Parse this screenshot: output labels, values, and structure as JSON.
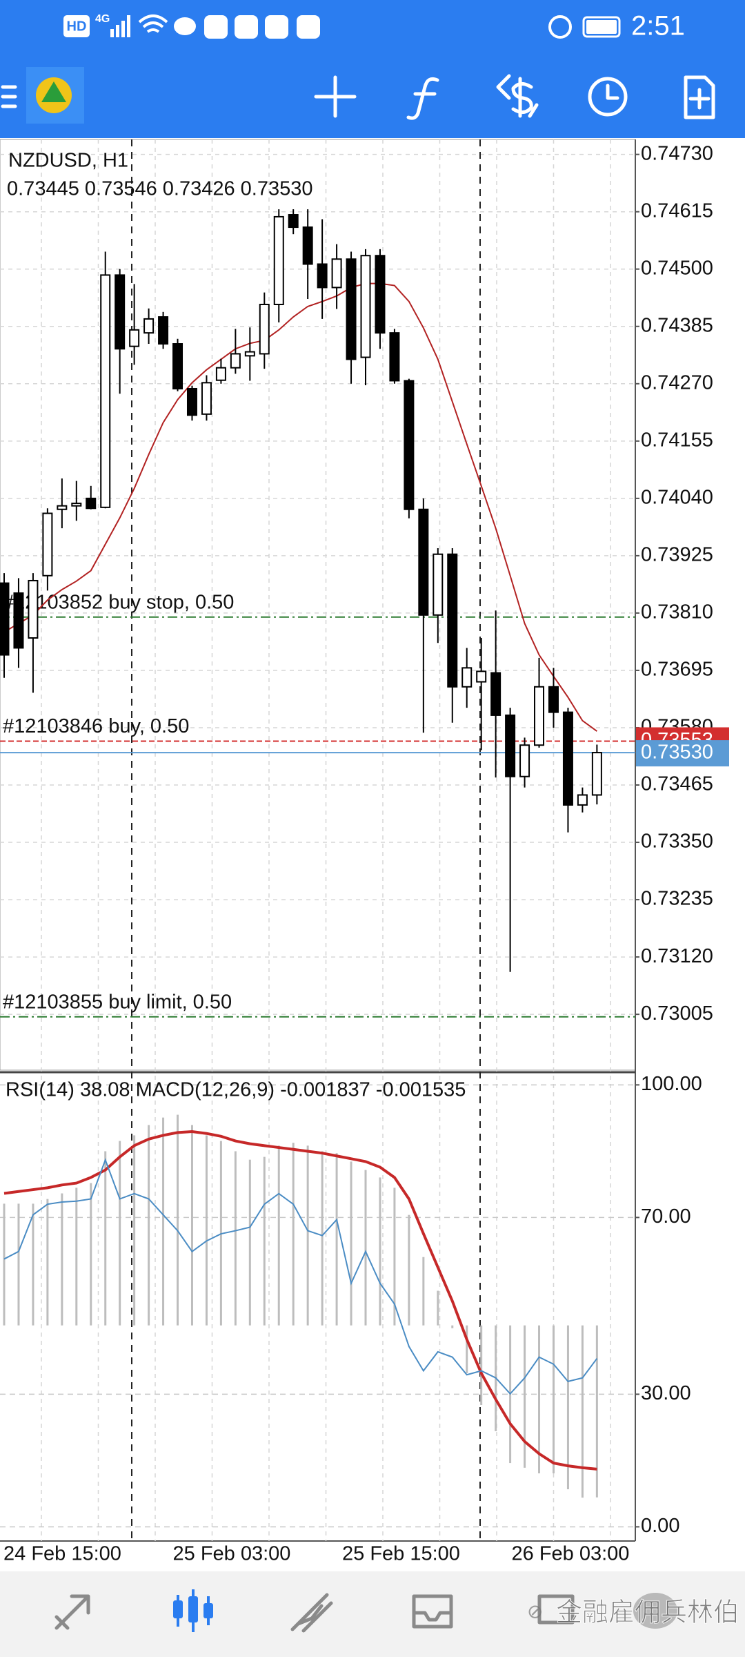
{
  "status_bar": {
    "hd": "HD",
    "network": "4G",
    "time": "2:51"
  },
  "chart_data": [
    {
      "type": "candlestick",
      "title": "NZDUSD, H1",
      "subtitle": "0.73445 0.73546 0.73426 0.73530",
      "open": [
        0.7387,
        0.7385,
        0.7376,
        0.73885,
        0.74018,
        0.74025,
        0.7404,
        0.74022,
        0.74488,
        0.74345,
        0.74372,
        0.74404,
        0.7435,
        0.7426,
        0.74209,
        0.74277,
        0.74302,
        0.74326,
        0.7433,
        0.74429,
        0.74609,
        0.74584,
        0.7451,
        0.74463,
        0.7452,
        0.74323,
        0.74527,
        0.74372,
        0.74276,
        0.74018,
        0.73806,
        0.73928,
        0.73662,
        0.73672,
        0.7369,
        0.73605,
        0.73482,
        0.73545,
        0.73662,
        0.73611,
        0.73425,
        0.73445
      ],
      "high": [
        0.7389,
        0.7388,
        0.7389,
        0.7402,
        0.7408,
        0.74075,
        0.74065,
        0.74535,
        0.745,
        0.7447,
        0.74421,
        0.74414,
        0.7436,
        0.74266,
        0.74287,
        0.7432,
        0.7438,
        0.74383,
        0.74453,
        0.7462,
        0.7462,
        0.7462,
        0.746,
        0.7455,
        0.74535,
        0.7454,
        0.7454,
        0.7438,
        0.7428,
        0.7404,
        0.7394,
        0.7394,
        0.7374,
        0.7376,
        0.73815,
        0.7362,
        0.7356,
        0.7372,
        0.737,
        0.7362,
        0.7346,
        0.73546
      ],
      "low": [
        0.7368,
        0.737,
        0.7365,
        0.73855,
        0.7398,
        0.73995,
        0.74018,
        0.7402,
        0.7425,
        0.74308,
        0.7435,
        0.7434,
        0.74255,
        0.74196,
        0.74196,
        0.7427,
        0.7429,
        0.74276,
        0.743,
        0.74393,
        0.7457,
        0.7444,
        0.744,
        0.7442,
        0.7427,
        0.74267,
        0.7434,
        0.7427,
        0.74,
        0.7357,
        0.7375,
        0.7359,
        0.7362,
        0.73535,
        0.7348,
        0.7309,
        0.7346,
        0.7354,
        0.7358,
        0.7337,
        0.7341,
        0.73426
      ],
      "close": [
        0.73726,
        0.7374,
        0.73875,
        0.7401,
        0.74025,
        0.7403,
        0.7402,
        0.74488,
        0.7434,
        0.74378,
        0.744,
        0.7435,
        0.7426,
        0.74207,
        0.74272,
        0.74302,
        0.7433,
        0.74334,
        0.74429,
        0.74605,
        0.74584,
        0.7451,
        0.74463,
        0.7452,
        0.74319,
        0.74527,
        0.74372,
        0.74276,
        0.74018,
        0.73806,
        0.73928,
        0.73662,
        0.737,
        0.73693,
        0.73605,
        0.73482,
        0.73545,
        0.73662,
        0.73611,
        0.73425,
        0.73445,
        0.7353
      ],
      "up_color": "#ffffff",
      "down_color": "#000000",
      "ma": {
        "color": "#b22222",
        "values": [
          0.73772,
          0.73789,
          0.73806,
          0.73836,
          0.73857,
          0.73874,
          0.73895,
          0.73948,
          0.74001,
          0.7406,
          0.74128,
          0.74192,
          0.74238,
          0.74272,
          0.74298,
          0.74319,
          0.7434,
          0.74351,
          0.74357,
          0.74378,
          0.74404,
          0.74425,
          0.74435,
          0.74446,
          0.74463,
          0.74471,
          0.74471,
          0.74467,
          0.74435,
          0.74382,
          0.74319,
          0.74234,
          0.74149,
          0.74065,
          0.7398,
          0.73885,
          0.73789,
          0.73726,
          0.73683,
          0.73641,
          0.73594,
          0.73573
        ]
      },
      "ylim": [
        0.72893,
        0.7476
      ],
      "yticks": [
        {
          "value": 0.7473,
          "label": "0.74730"
        },
        {
          "value": 0.74615,
          "label": "0.74615"
        },
        {
          "value": 0.745,
          "label": "0.74500"
        },
        {
          "value": 0.74385,
          "label": "0.74385"
        },
        {
          "value": 0.7427,
          "label": "0.74270"
        },
        {
          "value": 0.74155,
          "label": "0.74155"
        },
        {
          "value": 0.7404,
          "label": "0.74040"
        },
        {
          "value": 0.73925,
          "label": "0.73925"
        },
        {
          "value": 0.7381,
          "label": "0.73810"
        },
        {
          "value": 0.73695,
          "label": "0.73695"
        },
        {
          "value": 0.7358,
          "label": "0.73580"
        },
        {
          "value": 0.73465,
          "label": "0.73465"
        },
        {
          "value": 0.7335,
          "label": "0.73350"
        },
        {
          "value": 0.73235,
          "label": "0.73235"
        },
        {
          "value": 0.7312,
          "label": "0.73120"
        },
        {
          "value": 0.73005,
          "label": "0.73005"
        }
      ],
      "grid": true,
      "x_labels": [
        "24 Feb 15:00",
        "25 Feb 03:00",
        "25 Feb 15:00",
        "26 Feb 03:00"
      ],
      "orders": [
        {
          "label": "#12103852 buy stop, 0.50",
          "price": 0.73802,
          "color": "#2e7d32"
        },
        {
          "label": "#12103846 buy, 0.50",
          "price": {
            "value": 0.73553,
            "label": "0.73553"
          },
          "color": "#d32f2f"
        },
        {
          "label": "#12103855 buy limit, 0.50",
          "price": 0.73,
          "color": "#2e7d32"
        }
      ],
      "bid": {
        "value": 0.7353,
        "label": "0.73530",
        "color": "#5b9bd5"
      }
    },
    {
      "type": "indicator",
      "title": "RSI(14) 38.08 MACD(12,26,9) -0.001837 -0.001535",
      "ylim": [
        -2.9,
        102.4
      ],
      "yticks": [
        {
          "value": 100,
          "label": "100.00"
        },
        {
          "value": 70,
          "label": "70.00"
        },
        {
          "value": 30,
          "label": "30.00"
        },
        {
          "value": 0,
          "label": "0.00"
        }
      ],
      "rsi": {
        "color": "#4a8cc4",
        "values": [
          60.6,
          62.3,
          70.6,
          73,
          73.5,
          73.7,
          74.2,
          83,
          74.2,
          75.4,
          74.2,
          70.6,
          67,
          62.3,
          64.7,
          66.3,
          67,
          67.8,
          73,
          75.4,
          73,
          67,
          65.9,
          69.5,
          55.1,
          62.3,
          55.1,
          50.4,
          40.8,
          35.3,
          39.6,
          38.4,
          34.4,
          35.3,
          33.7,
          30.1,
          33.7,
          38.4,
          36.8,
          32.9,
          33.7,
          38.08
        ]
      },
      "macd": {
        "ylim": [
          -0.002288,
          0.002682
        ],
        "histogram": {
          "color": "#bdbdbd",
          "values": [
            0.0013,
            0.0013,
            0.0013,
            0.00135,
            0.00141,
            0.00147,
            0.00152,
            0.00186,
            0.00197,
            0.00203,
            0.00214,
            0.00222,
            0.00225,
            0.00214,
            0.00203,
            0.00197,
            0.00186,
            0.00177,
            0.0018,
            0.00192,
            0.00195,
            0.00192,
            0.00186,
            0.00184,
            0.00175,
            0.00166,
            0.00158,
            0.00147,
            0.00118,
            0.00073,
            0.00037,
            -3e-05,
            -0.00051,
            -0.00085,
            -0.00113,
            -0.00147,
            -0.00152,
            -0.00158,
            -0.00158,
            -0.00175,
            -0.00184,
            -0.001837
          ]
        },
        "signal": {
          "color": "#c62828",
          "values": [
            0.00141,
            0.00143,
            0.00145,
            0.00147,
            0.0015,
            0.00152,
            0.00158,
            0.00166,
            0.0018,
            0.00192,
            0.00199,
            0.00203,
            0.00206,
            0.00207,
            0.00205,
            0.00202,
            0.00197,
            0.00194,
            0.00192,
            0.0019,
            0.00188,
            0.00186,
            0.00184,
            0.00181,
            0.00178,
            0.00175,
            0.00169,
            0.00158,
            0.00135,
            0.00098,
            0.00062,
            0.00026,
            -0.00015,
            -0.00051,
            -0.00079,
            -0.00105,
            -0.00124,
            -0.00137,
            -0.00147,
            -0.0015,
            -0.00152,
            -0.001535
          ]
        }
      }
    }
  ],
  "watermark": "金融雇佣兵林伯"
}
